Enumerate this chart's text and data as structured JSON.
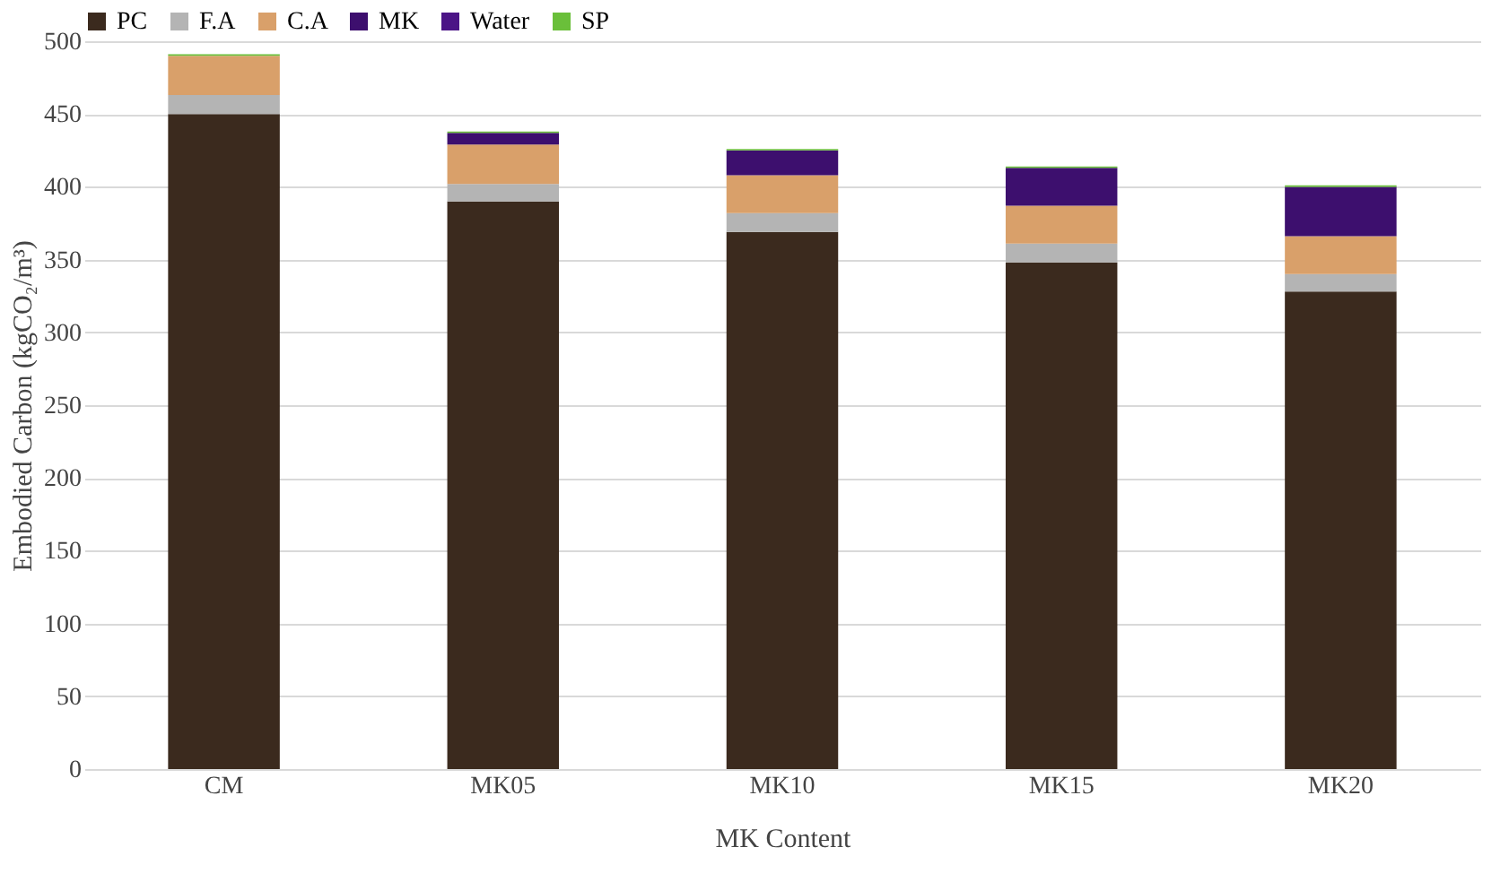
{
  "chart_data": {
    "type": "bar",
    "stacked": true,
    "xlabel": "MK Content",
    "ylabel": "Embodied Carbon (kgCO₂/m³)",
    "categories": [
      "CM",
      "MK05",
      "MK10",
      "MK15",
      "MK20"
    ],
    "series": [
      {
        "name": "PC",
        "color": "#3b2a1e",
        "values": [
          450,
          390,
          369,
          348,
          328
        ]
      },
      {
        "name": "F.A",
        "color": "#b4b4b4",
        "values": [
          13,
          12,
          13,
          13,
          12
        ]
      },
      {
        "name": "C.A",
        "color": "#d9a06a",
        "values": [
          27,
          27,
          26,
          26,
          26
        ]
      },
      {
        "name": "MK",
        "color": "#3d0f6e",
        "values": [
          0,
          8,
          17,
          26,
          34
        ]
      },
      {
        "name": "Water",
        "color": "#4b1486",
        "values": [
          0,
          0,
          0,
          0,
          0
        ]
      },
      {
        "name": "SP",
        "color": "#6abf3a",
        "values": [
          1,
          1,
          1,
          1,
          1
        ]
      }
    ],
    "ylim": [
      0,
      500
    ],
    "yticks": [
      0,
      50,
      100,
      150,
      200,
      250,
      300,
      350,
      400,
      450,
      500
    ],
    "grid": "y",
    "legend": "top"
  }
}
